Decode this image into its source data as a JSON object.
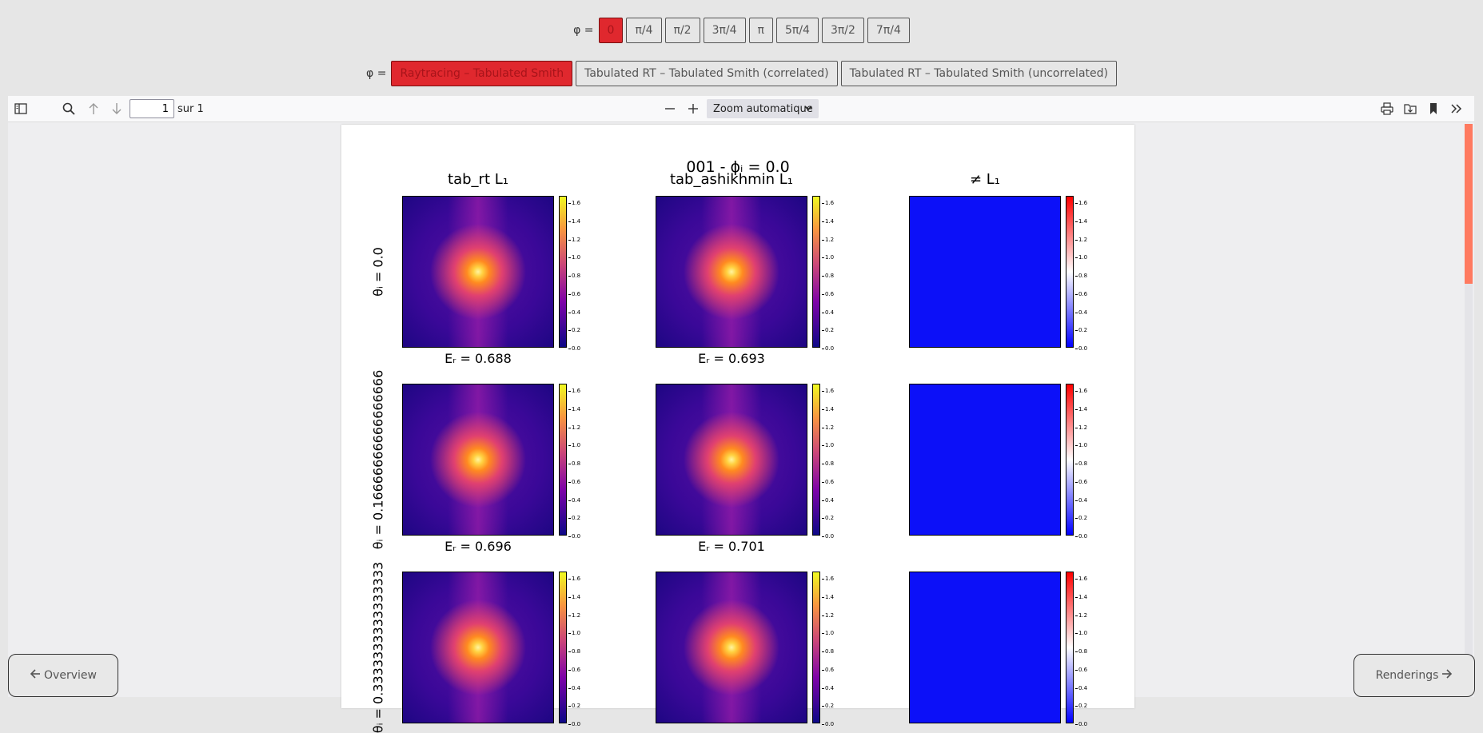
{
  "phi_selector": {
    "label": "φ =",
    "options": [
      "0",
      "π/4",
      "π/2",
      "3π/4",
      "π",
      "5π/4",
      "3π/2",
      "7π/4"
    ],
    "active_index": 0
  },
  "method_selector": {
    "label": "φ =",
    "options": [
      "Raytracing – Tabulated Smith",
      "Tabulated RT – Tabulated Smith (correlated)",
      "Tabulated RT – Tabulated Smith (uncorrelated)"
    ],
    "active_index": 0
  },
  "toolbar": {
    "page_number": "1",
    "page_count": "sur 1",
    "zoom": "Zoom automatique"
  },
  "figure": {
    "title": "001 - ϕᵢ = 0.0",
    "columns": [
      "tab_rt L₁",
      "tab_ashikhmin L₁",
      "≠ L₁"
    ],
    "rows": [
      {
        "label": "θᵢ = 0.0",
        "er": [
          "Eᵣ = 0.688",
          "Eᵣ = 0.693"
        ]
      },
      {
        "label": "θᵢ = 0.16666666666666666",
        "er": [
          "Eᵣ = 0.696",
          "Eᵣ = 0.701"
        ]
      },
      {
        "label": "θᵢ = 0.3333333333333333"
      }
    ],
    "colorbar_ticks": [
      "1.6",
      "1.4",
      "1.2",
      "1.0",
      "0.8",
      "0.6",
      "0.4",
      "0.2",
      "0.0"
    ]
  },
  "nav": {
    "prev_label": "Overview",
    "next_label": "Renderings"
  },
  "colors": {
    "active_button": "#e0282e",
    "scroll_thumb": "#ff7a60",
    "diff_map": "#0c10f8"
  }
}
